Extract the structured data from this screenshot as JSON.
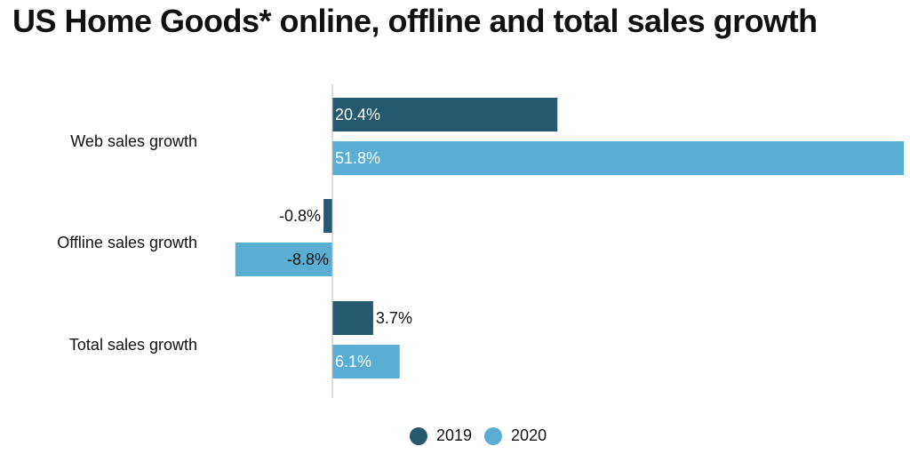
{
  "title": "US Home Goods* online, offline and total sales growth",
  "colors": {
    "series_2019": "#24596f",
    "series_2020": "#5aaed3",
    "axis": "#bbbbbb"
  },
  "chart_data": {
    "type": "bar",
    "orientation": "horizontal",
    "title": "US Home Goods* online, offline and total sales growth",
    "categories": [
      "Web sales growth",
      "Offline sales growth",
      "Total sales growth"
    ],
    "series": [
      {
        "name": "2019",
        "values": [
          20.4,
          -0.8,
          3.7
        ],
        "labels": [
          "20.4%",
          "-0.8%",
          "3.7%"
        ]
      },
      {
        "name": "2020",
        "values": [
          51.8,
          -8.8,
          6.1
        ],
        "labels": [
          "51.8%",
          "-8.8%",
          "6.1%"
        ]
      }
    ],
    "value_unit": "%",
    "xlim": [
      -8.8,
      51.8
    ],
    "grid": false,
    "legend_position": "bottom-center"
  },
  "legend": {
    "items": [
      {
        "label": "2019",
        "color": "#24596f"
      },
      {
        "label": "2020",
        "color": "#5aaed3"
      }
    ]
  }
}
